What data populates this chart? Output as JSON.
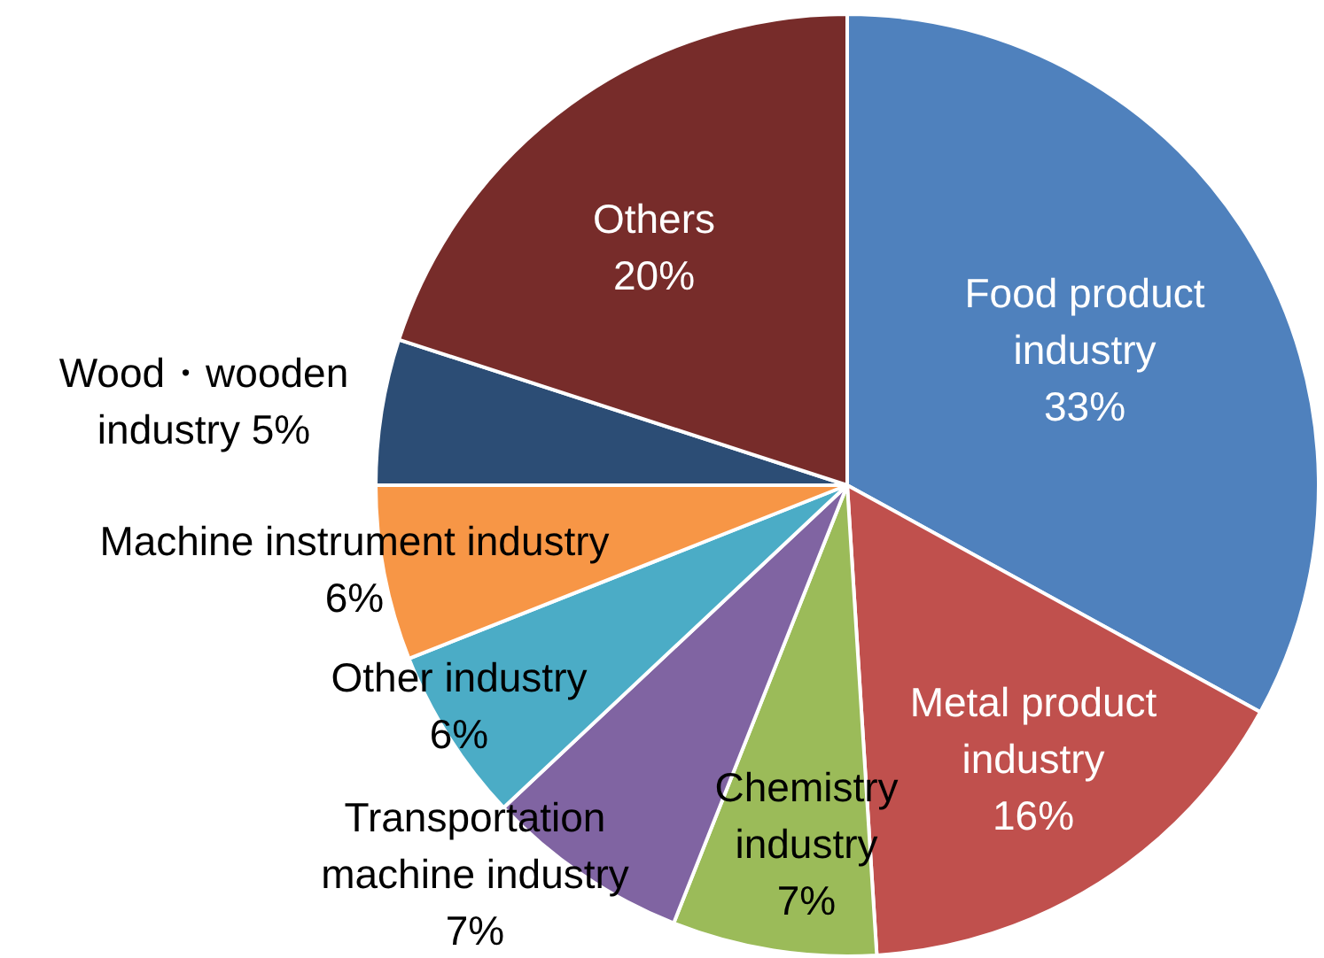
{
  "chart_data": {
    "type": "pie",
    "categories": [
      "Food product industry",
      "Metal product industry",
      "Chemistry industry",
      "Transportation machine industry",
      "Other industry",
      "Machine instrument industry",
      "Wood・wooden industry",
      "Others"
    ],
    "values": [
      33,
      16,
      7,
      7,
      6,
      6,
      5,
      20
    ],
    "value_labels": [
      "33%",
      "16%",
      "7%",
      "7%",
      "6%",
      "6%",
      "5%",
      "20%"
    ],
    "colors": [
      "#4f81bd",
      "#c0504d",
      "#9bbb59",
      "#8064a2",
      "#4bacc6",
      "#f79646",
      "#2c4d75",
      "#772c2a"
    ],
    "legend": false
  }
}
